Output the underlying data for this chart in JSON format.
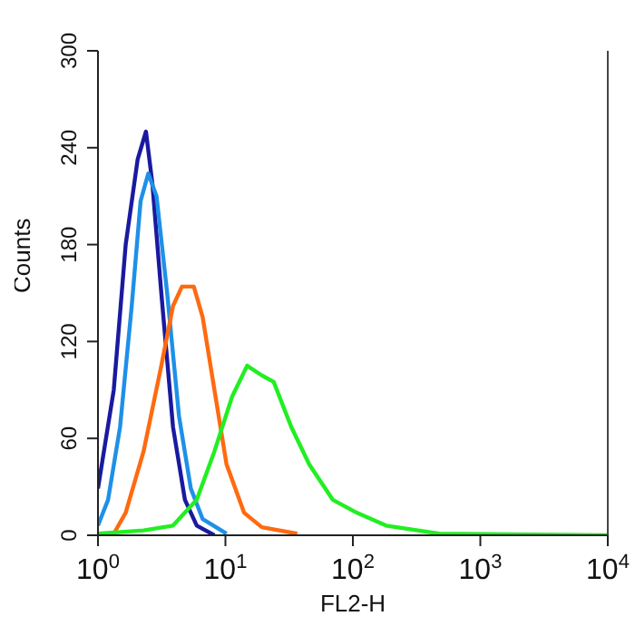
{
  "chart_data": {
    "type": "line",
    "xlabel": "FL2-H",
    "ylabel": "Counts",
    "log": "x",
    "xlim": [
      1,
      10000
    ],
    "xticks": [
      {
        "value": 1,
        "label": "10$^{0}$"
      },
      {
        "value": 10,
        "label": "10$^{1}$"
      },
      {
        "value": 100,
        "label": "10$^{2}$"
      },
      {
        "value": 1000,
        "label": "10$^{3}$"
      },
      {
        "value": 10000,
        "label": "10$^{4}$"
      }
    ],
    "ylim": [
      0,
      300
    ],
    "yticks": [
      0,
      60,
      120,
      180,
      240,
      300
    ],
    "marker": "none",
    "line_style": "solid",
    "series": [
      {
        "color": "#1a1aa0",
        "x": [
          1,
          1.33,
          1.65,
          2.05,
          2.38,
          2.67,
          3.14,
          3.88,
          4.81,
          5.96,
          8.2
        ],
        "values": [
          29,
          90,
          180,
          233,
          250,
          218,
          150,
          67,
          22,
          6,
          0
        ]
      },
      {
        "color": "#1e90e8",
        "x": [
          1,
          1.2,
          1.49,
          1.84,
          2.16,
          2.48,
          2.88,
          3.49,
          4.32,
          5.35,
          6.63,
          10.2
        ],
        "values": [
          6,
          22,
          67,
          142,
          207,
          224,
          210,
          150,
          74,
          29,
          10,
          1
        ]
      },
      {
        "color": "#ff6a10",
        "x": [
          1.33,
          1.65,
          2.28,
          3.14,
          3.88,
          4.56,
          5.65,
          6.63,
          8.2,
          10.2,
          14,
          19.3,
          36.6
        ],
        "values": [
          1,
          14,
          52,
          105,
          142,
          154,
          154,
          135,
          90,
          44,
          14,
          5,
          1
        ]
      },
      {
        "color": "#22ee22",
        "x": [
          1,
          2.28,
          3.88,
          5.96,
          8.2,
          11.3,
          14.8,
          19.3,
          23.9,
          32.9,
          45.4,
          69.5,
          107,
          182,
          476,
          10000
        ],
        "values": [
          1,
          3,
          6,
          22,
          52,
          86,
          105,
          99,
          95,
          67,
          44,
          22,
          14,
          6,
          1,
          0
        ]
      }
    ]
  }
}
